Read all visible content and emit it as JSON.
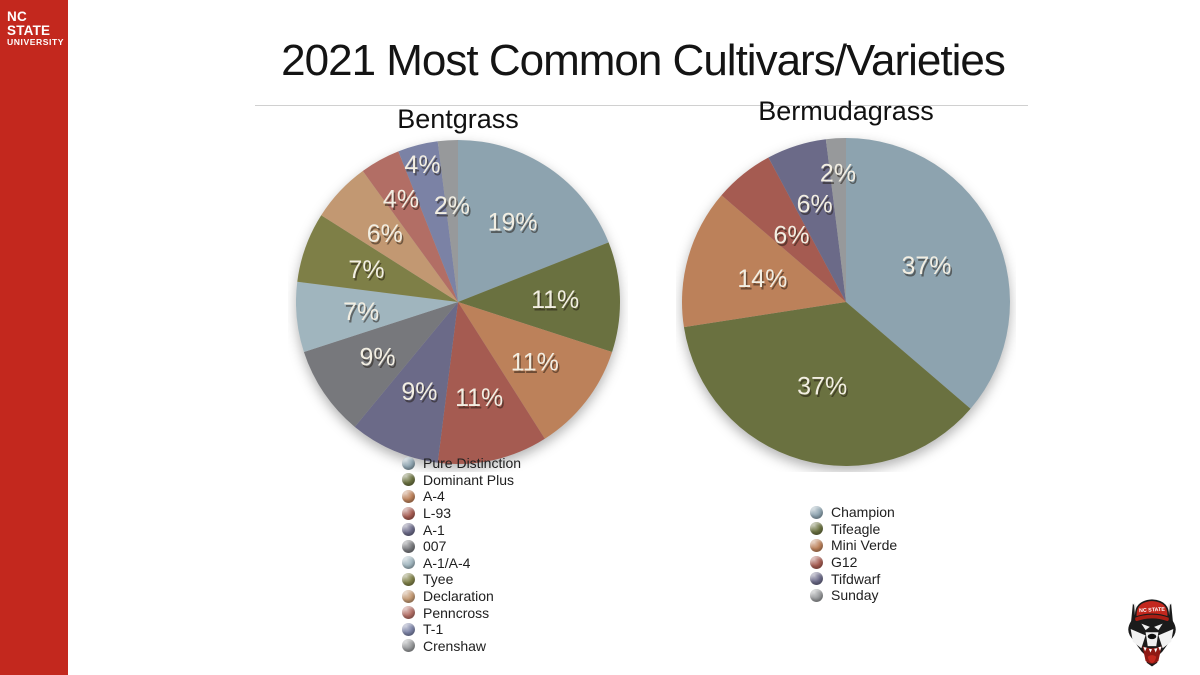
{
  "brand": {
    "bar_color": "#C3281E",
    "logo_line1": "NC STATE",
    "logo_line2": "UNIVERSITY",
    "mascot_icon": "nc-state-wolf-head-logo"
  },
  "title": "2021 Most Common Cultivars/Varieties",
  "chart_data": [
    {
      "type": "pie",
      "title": "Bentgrass",
      "start_angle": "12-oclock",
      "direction": "clockwise",
      "legend_position": "below-left",
      "data_label_color": "#F2EEE2",
      "slices": [
        {
          "label": "Pure Distinction",
          "value": 19,
          "pct_label": "19%",
          "color": "#8DA3AF",
          "label_r": 0.6
        },
        {
          "label": "Dominant Plus",
          "value": 11,
          "pct_label": "11%",
          "color": "#6A7140",
          "label_r": 0.6
        },
        {
          "label": "A-4",
          "value": 11,
          "pct_label": "11%",
          "color": "#BC815A",
          "label_r": 0.6
        },
        {
          "label": "L-93",
          "value": 11,
          "pct_label": "11%",
          "color": "#A55B51",
          "label_r": 0.6
        },
        {
          "label": "A-1",
          "value": 9,
          "pct_label": "9%",
          "color": "#6B6A88",
          "label_r": 0.6
        },
        {
          "label": "007",
          "value": 9,
          "pct_label": "9%",
          "color": "#77787C",
          "label_r": 0.6
        },
        {
          "label": "A-1/A-4",
          "value": 7,
          "pct_label": "7%",
          "color": "#A0B5BE",
          "label_r": 0.6
        },
        {
          "label": "Tyee",
          "value": 7,
          "pct_label": "7%",
          "color": "#7E7F47",
          "label_r": 0.6
        },
        {
          "label": "Declaration",
          "value": 6,
          "pct_label": "6%",
          "color": "#C29872",
          "label_r": 0.62
        },
        {
          "label": "Penncross",
          "value": 4,
          "pct_label": "4%",
          "color": "#B26E65",
          "label_r": 0.73
        },
        {
          "label": "T-1",
          "value": 4,
          "pct_label": "4%",
          "color": "#7B82A5",
          "label_r": 0.88
        },
        {
          "label": "Crenshaw",
          "value": 2,
          "pct_label": "2%",
          "color": "#97999B",
          "label_r": 0.6
        }
      ]
    },
    {
      "type": "pie",
      "title": "Bermudagrass",
      "start_angle": "12-oclock",
      "direction": "clockwise",
      "legend_position": "below-left",
      "data_label_color": "#F2EEE2",
      "slices": [
        {
          "label": "Champion",
          "value": 37,
          "pct_label": "37%",
          "color": "#8DA3AF",
          "label_r": 0.54
        },
        {
          "label": "Tifeagle",
          "value": 37,
          "pct_label": "37%",
          "color": "#6A7140",
          "label_r": 0.53
        },
        {
          "label": "Mini Verde",
          "value": 14,
          "pct_label": "14%",
          "color": "#BC815A",
          "label_r": 0.53
        },
        {
          "label": "G12",
          "value": 6,
          "pct_label": "6%",
          "color": "#A55B51",
          "label_r": 0.53
        },
        {
          "label": "Tifdwarf",
          "value": 6,
          "pct_label": "6%",
          "color": "#6B6A88",
          "label_r": 0.63
        },
        {
          "label": "Sunday",
          "value": 2,
          "pct_label": "2%",
          "color": "#97999B",
          "label_r": 0.79
        }
      ]
    }
  ]
}
